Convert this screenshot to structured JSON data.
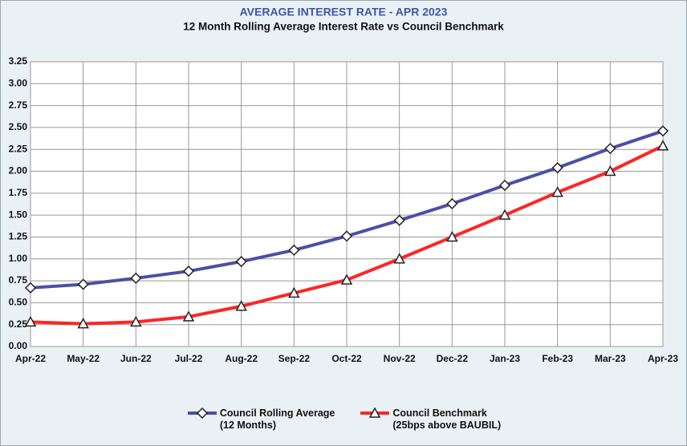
{
  "chart_data": {
    "type": "line",
    "title": "AVERAGE INTEREST  RATE - APR 2023",
    "subtitle": "12 Month Rolling Average Interest Rate vs Council Benchmark",
    "categories": [
      "Apr-22",
      "May-22",
      "Jun-22",
      "Jul-22",
      "Aug-22",
      "Sep-22",
      "Oct-22",
      "Nov-22",
      "Dec-22",
      "Jan-23",
      "Feb-23",
      "Mar-23",
      "Apr-23"
    ],
    "series": [
      {
        "name": "Council Rolling Average\n(12 Months)",
        "color": "#4b4fa6",
        "marker": "diamond",
        "values": [
          0.67,
          0.71,
          0.78,
          0.86,
          0.97,
          1.1,
          1.26,
          1.44,
          1.63,
          1.84,
          2.04,
          2.26,
          2.46
        ]
      },
      {
        "name": "Council Benchmark\n(25bps above BAUBIL)",
        "color": "#ff2424",
        "marker": "triangle",
        "values": [
          0.28,
          0.26,
          0.28,
          0.34,
          0.46,
          0.61,
          0.76,
          1.0,
          1.25,
          1.5,
          1.76,
          2.0,
          2.29
        ]
      }
    ],
    "ylim": [
      0,
      3.25
    ],
    "yticks": [
      {
        "value": 0,
        "label": "0.00"
      },
      {
        "value": 0.25,
        "label": "0.25"
      },
      {
        "value": 0.5,
        "label": "0.50"
      },
      {
        "value": 0.75,
        "label": "0.75"
      },
      {
        "value": 1,
        "label": "1.00"
      },
      {
        "value": 1.25,
        "label": "1.25"
      },
      {
        "value": 1.5,
        "label": "1.50"
      },
      {
        "value": 1.75,
        "label": "1.75"
      },
      {
        "value": 2,
        "label": "2.00"
      },
      {
        "value": 2.25,
        "label": "2.25"
      },
      {
        "value": 2.5,
        "label": "2.50"
      },
      {
        "value": 2.75,
        "label": "2.75"
      },
      {
        "value": 3,
        "label": "3.00"
      },
      {
        "value": 3.25,
        "label": "3.25"
      }
    ],
    "grid": true,
    "legend": "bottom"
  }
}
